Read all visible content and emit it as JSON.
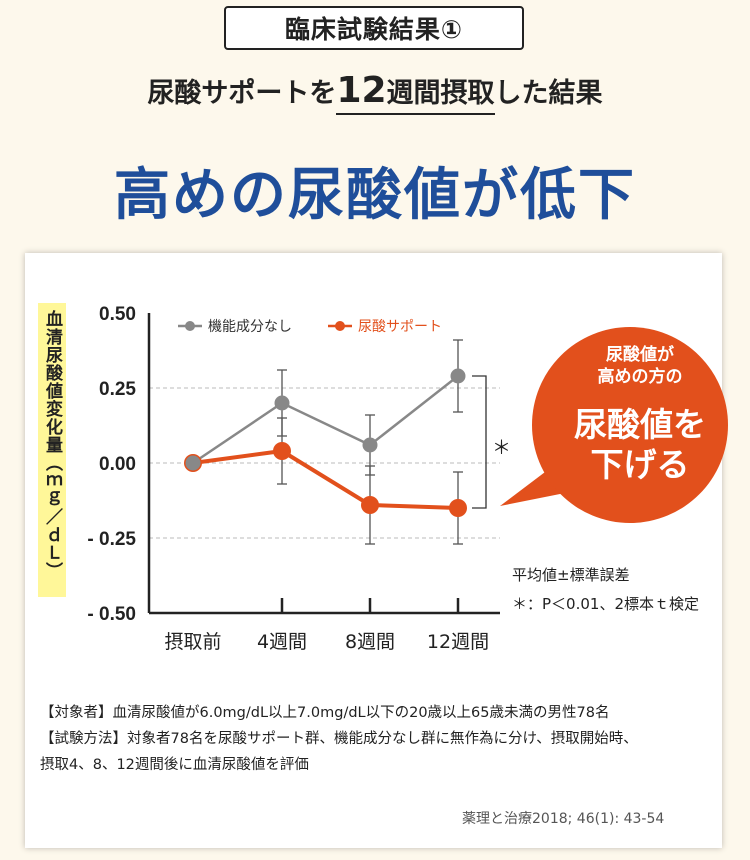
{
  "header": {
    "badge": "臨床試験結果①",
    "subtitle_pre": "尿酸サポートを",
    "subtitle_num": "12",
    "subtitle_unit": "週間摂取",
    "subtitle_post": "した結果",
    "headline": "高めの尿酸値が低下"
  },
  "chart_data": {
    "type": "line",
    "ylabel": "血清尿酸値変化量（ｍｇ／ｄＬ）",
    "ylim": [
      -0.5,
      0.5
    ],
    "yticks": [
      "0.50",
      "0.25",
      "0.00",
      "- 0.25",
      "- 0.50"
    ],
    "ytick_values": [
      0.5,
      0.25,
      0,
      -0.25,
      -0.5
    ],
    "categories": [
      "摂取前",
      "4週間",
      "8週間",
      "12週間"
    ],
    "series": [
      {
        "name": "機能成分なし",
        "color": "#888888",
        "values": [
          0.0,
          0.2,
          0.06,
          0.29
        ],
        "sd": [
          0,
          0.11,
          0.1,
          0.12
        ]
      },
      {
        "name": "尿酸サポート",
        "color": "#e2501c",
        "values": [
          0.0,
          0.04,
          -0.14,
          -0.15
        ],
        "sd": [
          0,
          0.11,
          0.13,
          0.12
        ]
      }
    ],
    "grid": true,
    "legend": "top-left",
    "significance": "＊"
  },
  "notes": {
    "sd": "平均値±標準誤差",
    "sig": "＊：P＜0.01、2標本ｔ検定"
  },
  "callout": {
    "line1": "尿酸値が",
    "line2": "高めの方の",
    "line3": "尿酸値を",
    "line4": "下げる",
    "color": "#e2501c"
  },
  "footnote": {
    "line1": "【対象者】血清尿酸値が6.0mg/dL以上7.0mg/dL以下の20歳以上65歳未満の男性78名",
    "line2": "【試験方法】対象者78名を尿酸サポート群、機能成分なし群に無作為に分け、摂取開始時、",
    "line3": "摂取4、8、12週間後に血清尿酸値を評価"
  },
  "citation": "薬理と治療2018; 46(1): 43-54"
}
